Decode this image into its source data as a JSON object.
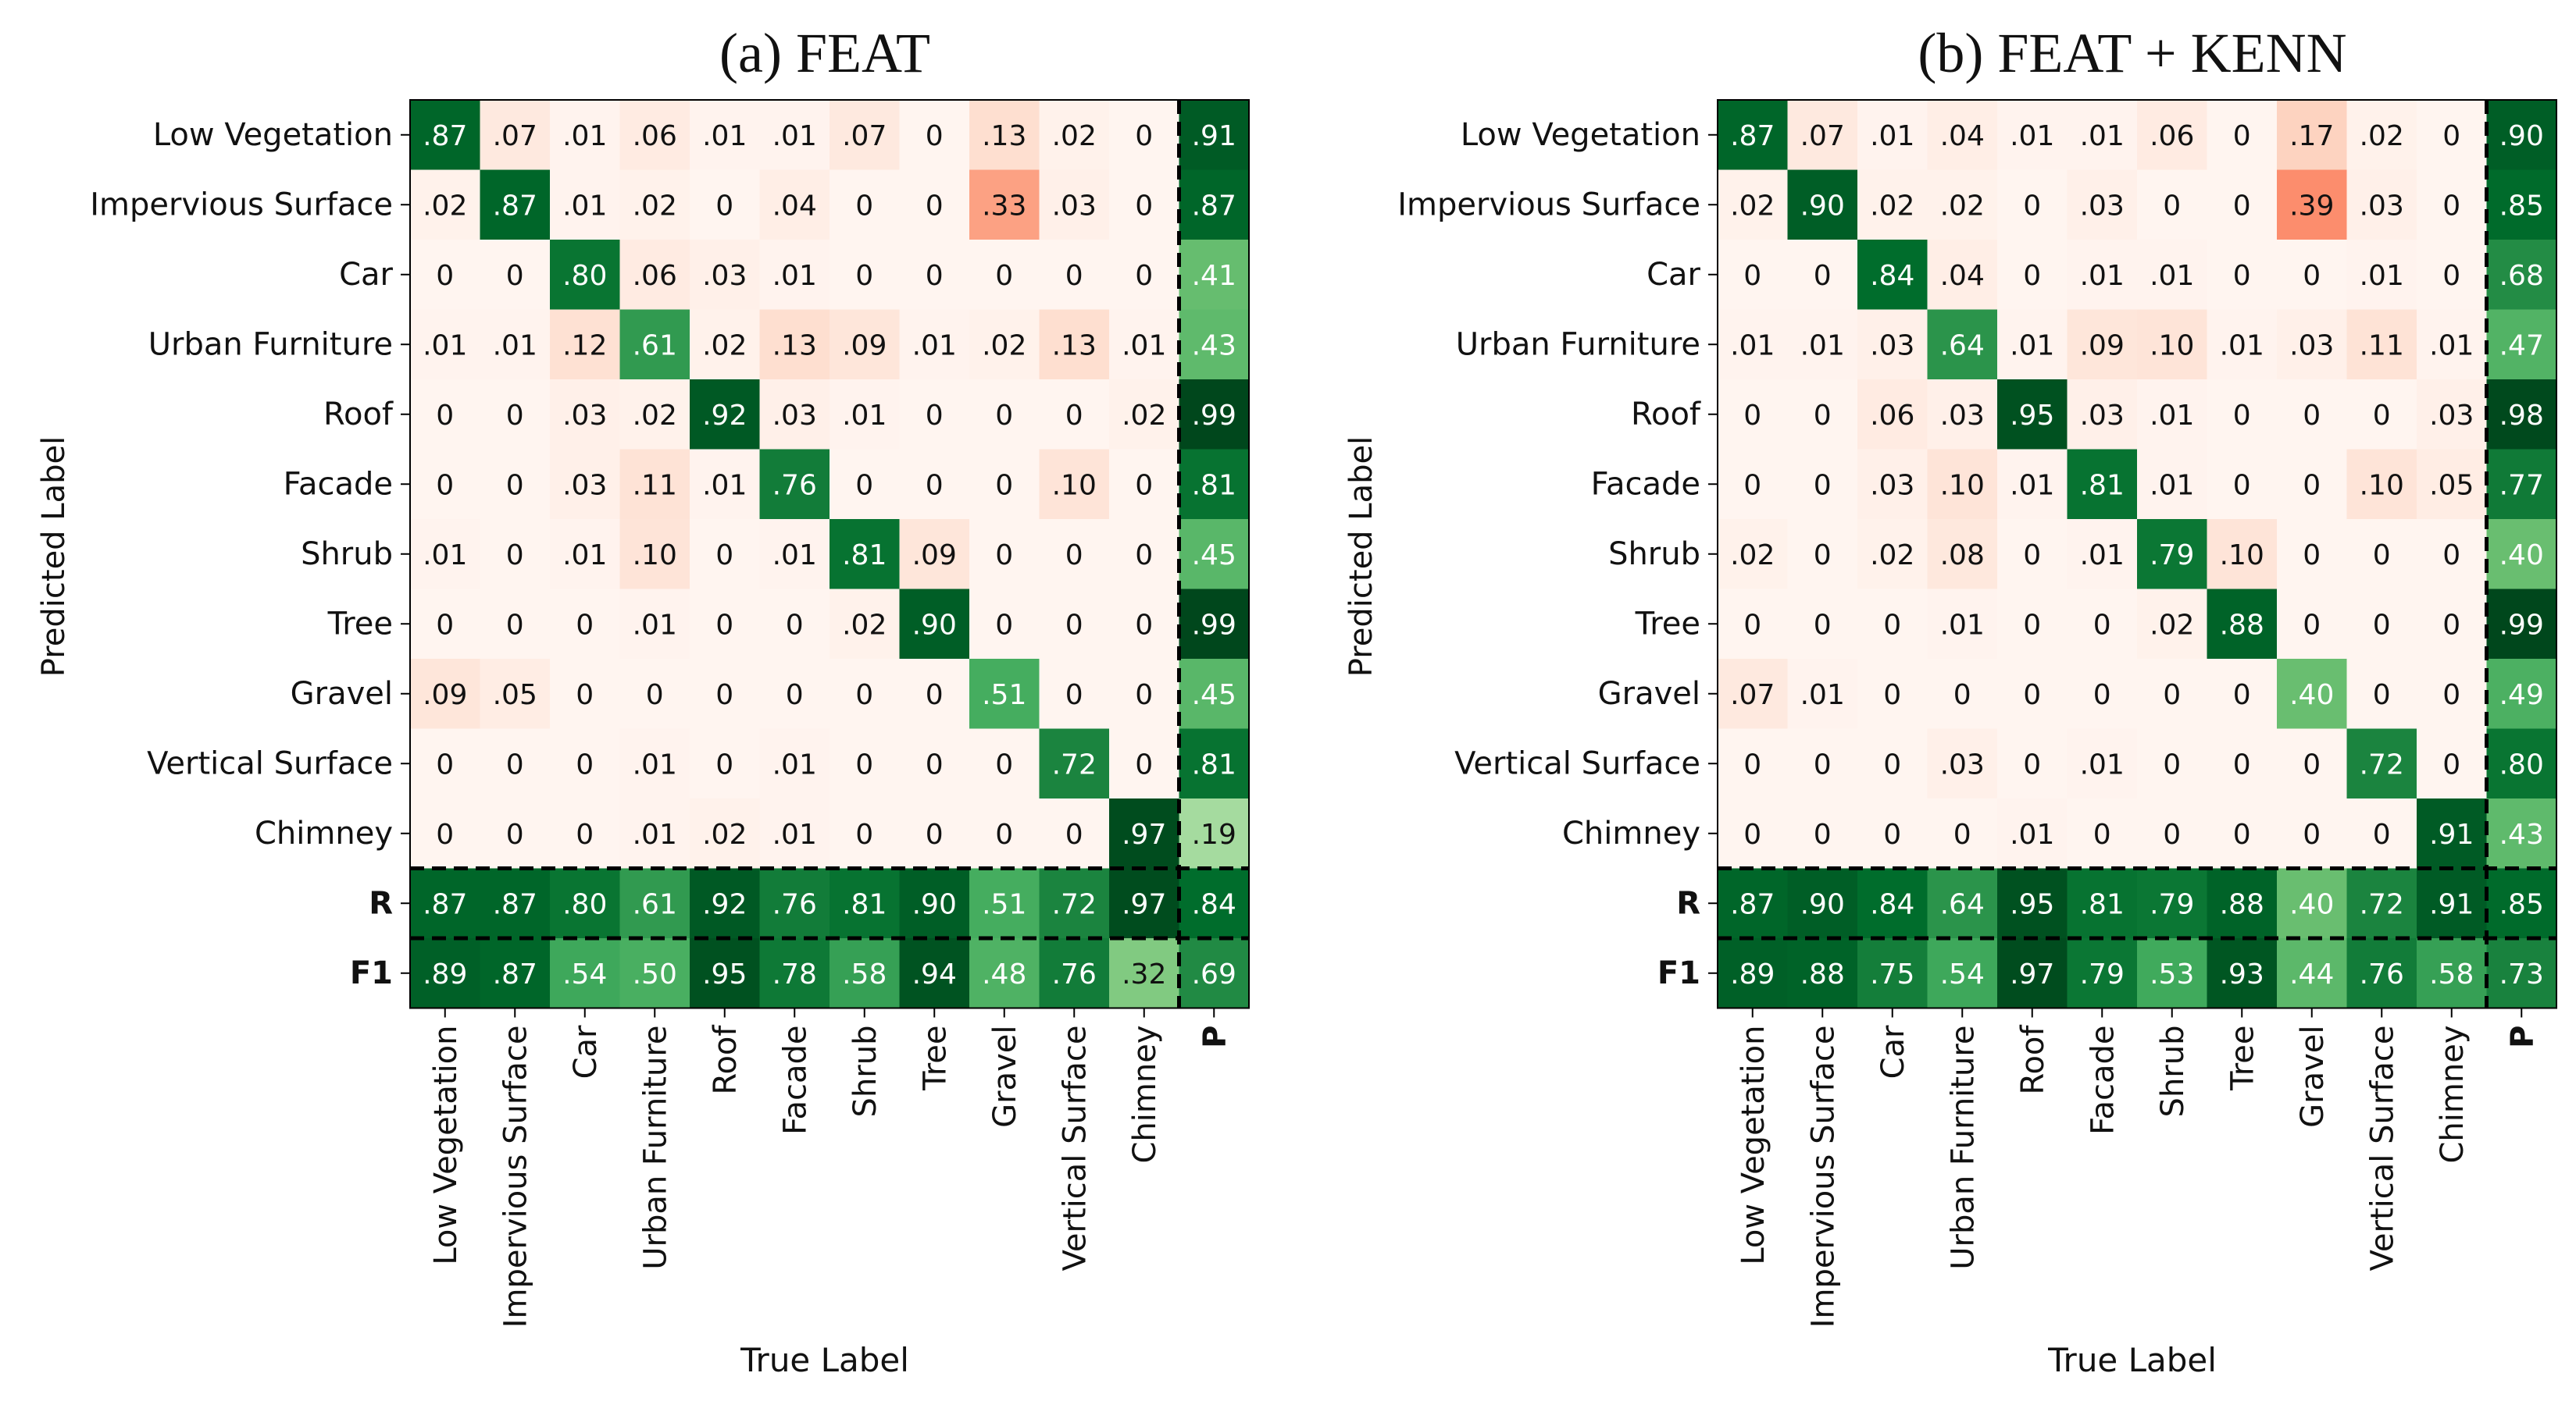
{
  "chart_data": [
    {
      "type": "heatmap",
      "title": "(a) FEAT",
      "xlabel": "True Label",
      "ylabel": "Predicted Label",
      "rows": [
        "Low Vegetation",
        "Impervious Surface",
        "Car",
        "Urban Furniture",
        "Roof",
        "Facade",
        "Shrub",
        "Tree",
        "Gravel",
        "Vertical Surface",
        "Chimney"
      ],
      "columns": [
        "Low Vegetation",
        "Impervious Surface",
        "Car",
        "Urban Furniture",
        "Roof",
        "Facade",
        "Shrub",
        "Tree",
        "Gravel",
        "Vertical Surface",
        "Chimney"
      ],
      "summary_row_labels": [
        "R",
        "F1"
      ],
      "summary_col_label": "P",
      "matrix": [
        [
          ".87",
          ".07",
          ".01",
          ".06",
          ".01",
          ".01",
          ".07",
          "0",
          ".13",
          ".02",
          "0"
        ],
        [
          ".02",
          ".87",
          ".01",
          ".02",
          "0",
          ".04",
          "0",
          "0",
          ".33",
          ".03",
          "0"
        ],
        [
          "0",
          "0",
          ".80",
          ".06",
          ".03",
          ".01",
          "0",
          "0",
          "0",
          "0",
          "0"
        ],
        [
          ".01",
          ".01",
          ".12",
          ".61",
          ".02",
          ".13",
          ".09",
          ".01",
          ".02",
          ".13",
          ".01"
        ],
        [
          "0",
          "0",
          ".03",
          ".02",
          ".92",
          ".03",
          ".01",
          "0",
          "0",
          "0",
          ".02"
        ],
        [
          "0",
          "0",
          ".03",
          ".11",
          ".01",
          ".76",
          "0",
          "0",
          "0",
          ".10",
          "0"
        ],
        [
          ".01",
          "0",
          ".01",
          ".10",
          "0",
          ".01",
          ".81",
          ".09",
          "0",
          "0",
          "0"
        ],
        [
          "0",
          "0",
          "0",
          ".01",
          "0",
          "0",
          ".02",
          ".90",
          "0",
          "0",
          "0"
        ],
        [
          ".09",
          ".05",
          "0",
          "0",
          "0",
          "0",
          "0",
          "0",
          ".51",
          "0",
          "0"
        ],
        [
          "0",
          "0",
          "0",
          ".01",
          "0",
          ".01",
          "0",
          "0",
          "0",
          ".72",
          "0"
        ],
        [
          "0",
          "0",
          "0",
          ".01",
          ".02",
          ".01",
          "0",
          "0",
          "0",
          "0",
          ".97"
        ]
      ],
      "precision": [
        ".91",
        ".87",
        ".41",
        ".43",
        ".99",
        ".81",
        ".45",
        ".99",
        ".45",
        ".81",
        ".19"
      ],
      "recall": [
        ".87",
        ".87",
        ".80",
        ".61",
        ".92",
        ".76",
        ".81",
        ".90",
        ".51",
        ".72",
        ".97"
      ],
      "f1": [
        ".89",
        ".87",
        ".54",
        ".50",
        ".95",
        ".78",
        ".58",
        ".94",
        ".48",
        ".76",
        ".32"
      ],
      "overall_recall": ".84",
      "overall_f1": ".69"
    },
    {
      "type": "heatmap",
      "title": "(b) FEAT + KENN",
      "xlabel": "True Label",
      "ylabel": "Predicted Label",
      "rows": [
        "Low Vegetation",
        "Impervious Surface",
        "Car",
        "Urban Furniture",
        "Roof",
        "Facade",
        "Shrub",
        "Tree",
        "Gravel",
        "Vertical Surface",
        "Chimney"
      ],
      "columns": [
        "Low Vegetation",
        "Impervious Surface",
        "Car",
        "Urban Furniture",
        "Roof",
        "Facade",
        "Shrub",
        "Tree",
        "Gravel",
        "Vertical Surface",
        "Chimney"
      ],
      "summary_row_labels": [
        "R",
        "F1"
      ],
      "summary_col_label": "P",
      "matrix": [
        [
          ".87",
          ".07",
          ".01",
          ".04",
          ".01",
          ".01",
          ".06",
          "0",
          ".17",
          ".02",
          "0"
        ],
        [
          ".02",
          ".90",
          ".02",
          ".02",
          "0",
          ".03",
          "0",
          "0",
          ".39",
          ".03",
          "0"
        ],
        [
          "0",
          "0",
          ".84",
          ".04",
          "0",
          ".01",
          ".01",
          "0",
          "0",
          ".01",
          "0"
        ],
        [
          ".01",
          ".01",
          ".03",
          ".64",
          ".01",
          ".09",
          ".10",
          ".01",
          ".03",
          ".11",
          ".01"
        ],
        [
          "0",
          "0",
          ".06",
          ".03",
          ".95",
          ".03",
          ".01",
          "0",
          "0",
          "0",
          ".03"
        ],
        [
          "0",
          "0",
          ".03",
          ".10",
          ".01",
          ".81",
          ".01",
          "0",
          "0",
          ".10",
          ".05"
        ],
        [
          ".02",
          "0",
          ".02",
          ".08",
          "0",
          ".01",
          ".79",
          ".10",
          "0",
          "0",
          "0"
        ],
        [
          "0",
          "0",
          "0",
          ".01",
          "0",
          "0",
          ".02",
          ".88",
          "0",
          "0",
          "0"
        ],
        [
          ".07",
          ".01",
          "0",
          "0",
          "0",
          "0",
          "0",
          "0",
          ".40",
          "0",
          "0"
        ],
        [
          "0",
          "0",
          "0",
          ".03",
          "0",
          ".01",
          "0",
          "0",
          "0",
          ".72",
          "0"
        ],
        [
          "0",
          "0",
          "0",
          "0",
          ".01",
          "0",
          "0",
          "0",
          "0",
          "0",
          ".91"
        ]
      ],
      "precision": [
        ".90",
        ".85",
        ".68",
        ".47",
        ".98",
        ".77",
        ".40",
        ".99",
        ".49",
        ".80",
        ".43"
      ],
      "recall": [
        ".87",
        ".90",
        ".84",
        ".64",
        ".95",
        ".81",
        ".79",
        ".88",
        ".40",
        ".72",
        ".91"
      ],
      "f1": [
        ".89",
        ".88",
        ".75",
        ".54",
        ".97",
        ".79",
        ".53",
        ".93",
        ".44",
        ".76",
        ".58"
      ],
      "overall_recall": ".85",
      "overall_f1": ".73"
    }
  ]
}
